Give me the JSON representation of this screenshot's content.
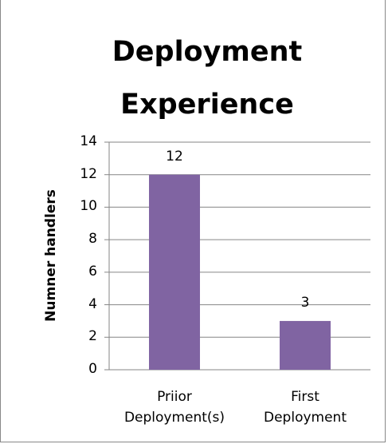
{
  "chart_data": {
    "type": "bar",
    "title": "Deployment Experience",
    "y_label": "Numner handlers",
    "categories": [
      "Priior Deployment(s)",
      "First Deployment"
    ],
    "values": [
      12,
      3
    ],
    "color": "#8064a2",
    "ylim": [
      0,
      14
    ],
    "yticks": [
      0,
      2,
      4,
      6,
      8,
      10,
      12,
      14
    ],
    "grid": true
  }
}
